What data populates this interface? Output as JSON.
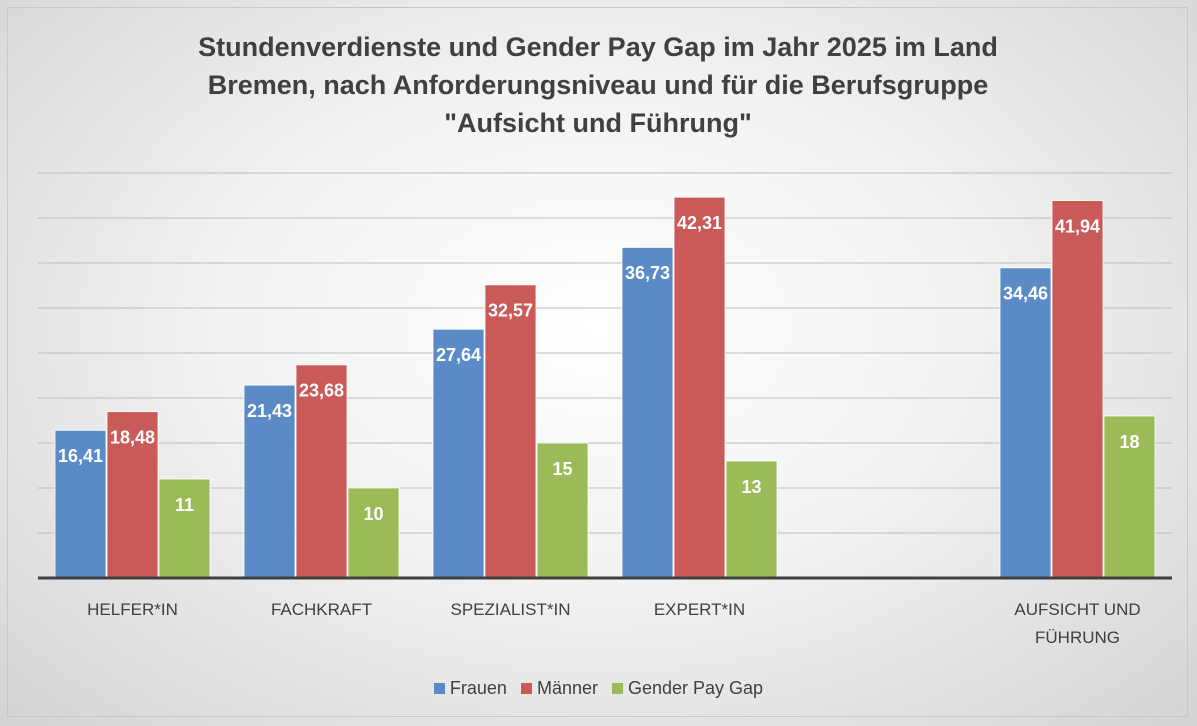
{
  "chart_data": {
    "type": "bar",
    "title": "Stundenverdienste und Gender Pay Gap im Jahr 2025 im Land Bremen, nach Anforderungsniveau und für die Berufsgruppe \"Aufsicht und Führung\"",
    "categories": [
      "HELFER*IN",
      "FACHKRAFT",
      "SPEZIALIST*IN",
      "EXPERT*IN",
      null,
      "AUFSICHT UND FÜHRUNG"
    ],
    "series": [
      {
        "name": "Frauen",
        "color": "#5b8bc6",
        "values": [
          16.41,
          21.43,
          27.64,
          36.73,
          null,
          34.46
        ],
        "value_labels": [
          "16,41",
          "21,43",
          "27,64",
          "36,73",
          null,
          "34,46"
        ]
      },
      {
        "name": "Männer",
        "color": "#c95a57",
        "values": [
          18.48,
          23.68,
          32.57,
          42.31,
          null,
          41.94
        ],
        "value_labels": [
          "18,48",
          "23,68",
          "32,57",
          "42,31",
          null,
          "41,94"
        ]
      },
      {
        "name": "Gender Pay Gap",
        "color": "#9bbb59",
        "values": [
          11,
          10,
          15,
          13,
          null,
          18
        ]
      }
    ],
    "ylim": [
      0,
      45
    ],
    "yticks": [
      0,
      5,
      10,
      15,
      20,
      25,
      30,
      35,
      40,
      45
    ],
    "grid": true,
    "legend": "bottom"
  }
}
